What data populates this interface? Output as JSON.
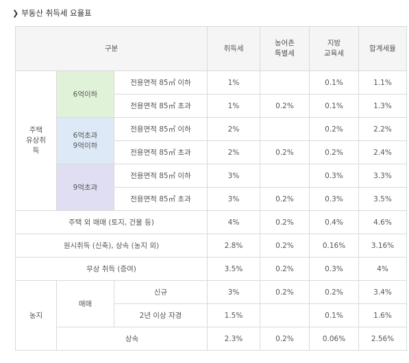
{
  "title": "부동산 취득세 요율표",
  "title_icon": "chevron-right-icon",
  "header": {
    "category": "구분",
    "acq_tax": "취득세",
    "rural_line1": "농어촌",
    "rural_line2": "특별세",
    "local_line1": "지방",
    "local_line2": "교육세",
    "total": "합계세율"
  },
  "housing": {
    "group_line1": "주택",
    "group_line2": "유상취",
    "group_line3": "득",
    "bands": [
      {
        "label_line1": "6억이하",
        "label_line2": "",
        "color": "#e0f2d8",
        "rows": [
          {
            "area": "전용면적 85㎡ 이하",
            "acq": "1%",
            "rural": "",
            "local": "0.1%",
            "total": "1.1%"
          },
          {
            "area": "전용면적 85㎡ 초과",
            "acq": "1%",
            "rural": "0.2%",
            "local": "0.1%",
            "total": "1.3%"
          }
        ]
      },
      {
        "label_line1": "6억초과",
        "label_line2": "9억이하",
        "color": "#dde9f6",
        "rows": [
          {
            "area": "전용면적 85㎡ 이하",
            "acq": "2%",
            "rural": "",
            "local": "0.2%",
            "total": "2.2%"
          },
          {
            "area": "전용면적 85㎡ 초과",
            "acq": "2%",
            "rural": "0.2%",
            "local": "0.2%",
            "total": "2.4%"
          }
        ]
      },
      {
        "label_line1": "9억초과",
        "label_line2": "",
        "color": "#e0def3",
        "rows": [
          {
            "area": "전용면적 85㎡ 이하",
            "acq": "3%",
            "rural": "",
            "local": "0.3%",
            "total": "3.3%"
          },
          {
            "area": "전용면적 85㎡ 초과",
            "acq": "3%",
            "rural": "0.2%",
            "local": "0.3%",
            "total": "3.5%"
          }
        ]
      }
    ]
  },
  "other_rows": [
    {
      "label": "주택 외 매매 (토지, 건물 등)",
      "acq": "4%",
      "rural": "0.2%",
      "local": "0.4%",
      "total": "4.6%"
    },
    {
      "label": "원시취득 (신축), 상속 (농지 외)",
      "acq": "2.8%",
      "rural": "0.2%",
      "local": "0.16%",
      "total": "3.16%"
    },
    {
      "label": "무상 취득 (증여)",
      "acq": "3.5%",
      "rural": "0.2%",
      "local": "0.3%",
      "total": "4%"
    }
  ],
  "farmland": {
    "group": "농지",
    "sale_label": "매매",
    "sale_rows": [
      {
        "label": "신규",
        "acq": "3%",
        "rural": "0.2%",
        "local": "0.2%",
        "total": "3.4%"
      },
      {
        "label": "2년 이상 자경",
        "acq": "1.5%",
        "rural": "",
        "local": "0.1%",
        "total": "1.6%"
      }
    ],
    "inherit": {
      "label": "상속",
      "acq": "2.3%",
      "rural": "0.2%",
      "local": "0.06%",
      "total": "2.56%"
    }
  }
}
